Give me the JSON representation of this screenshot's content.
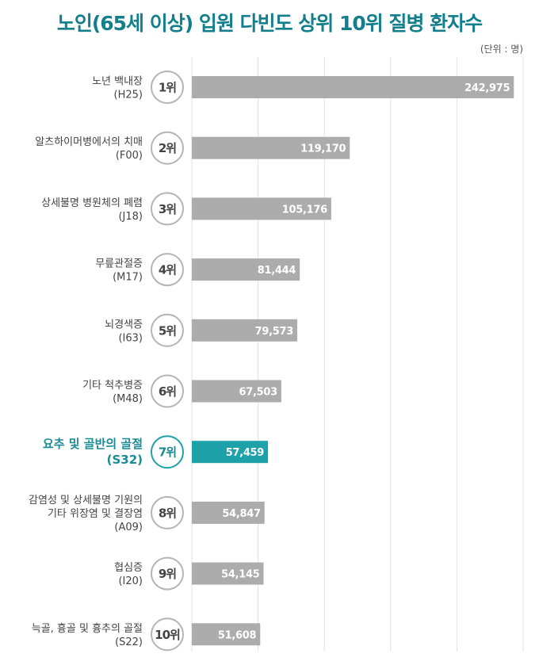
{
  "title": "노인(65세 이상) 입원 다빈도 상위 10위 질병 환자수",
  "unit": "(단위 : 명)",
  "colors": {
    "bar": "#acacac",
    "highlight": "#1ea1a8",
    "title": "#147f8c"
  },
  "chart_data": {
    "type": "bar",
    "orientation": "horizontal",
    "xlim": [
      0,
      250000
    ],
    "grid": true,
    "highlight_index": 6,
    "categories": [
      {
        "rank": "1위",
        "lines": [
          "노년 백내장",
          "(H25)"
        ]
      },
      {
        "rank": "2위",
        "lines": [
          "알츠하이머병에서의 치매",
          "(F00)"
        ]
      },
      {
        "rank": "3위",
        "lines": [
          "상세불명 병원체의 폐렴",
          "(J18)"
        ]
      },
      {
        "rank": "4위",
        "lines": [
          "무릎관절증",
          "(M17)"
        ]
      },
      {
        "rank": "5위",
        "lines": [
          "뇌경색증",
          "(I63)"
        ]
      },
      {
        "rank": "6위",
        "lines": [
          "기타 척추병증",
          "(M48)"
        ]
      },
      {
        "rank": "7위",
        "lines": [
          "요추 및 골반의 골절",
          "(S32)"
        ]
      },
      {
        "rank": "8위",
        "lines": [
          "감염성 및 상세불명 기원의",
          "기타 위장염 및 결장염",
          "(A09)"
        ]
      },
      {
        "rank": "9위",
        "lines": [
          "협심증",
          "(I20)"
        ]
      },
      {
        "rank": "10위",
        "lines": [
          "늑골, 흉골 및 흉추의 골절",
          "(S22)"
        ]
      }
    ],
    "values": [
      242975,
      119170,
      105176,
      81444,
      79573,
      67503,
      57459,
      54847,
      54145,
      51608
    ],
    "value_labels": [
      "242,975",
      "119,170",
      "105,176",
      "81,444",
      "79,573",
      "67,503",
      "57,459",
      "54,847",
      "54,145",
      "51,608"
    ]
  }
}
